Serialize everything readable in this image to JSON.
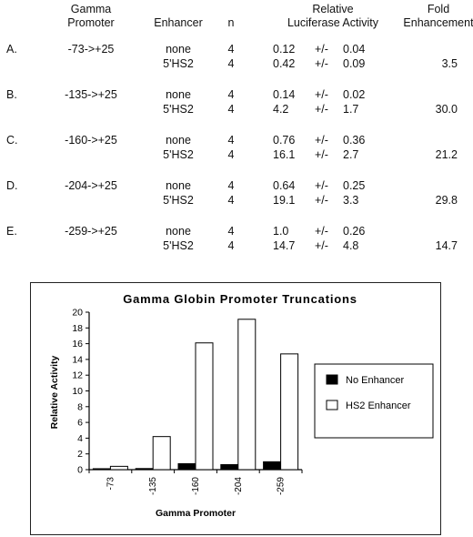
{
  "table": {
    "headers": {
      "promoter": "Gamma\nPromoter",
      "enhancer": "Enhancer",
      "n": "n",
      "activity": "Relative\nLuciferase Activity",
      "fold": "Fold\nEnhancement"
    },
    "rows": [
      {
        "label": "A.",
        "promoter": "-73->+25",
        "lines": [
          {
            "enhancer": "none",
            "n": "4",
            "mean": "0.12",
            "pm": "+/-",
            "sd": "0.04",
            "fold": ""
          },
          {
            "enhancer": "5'HS2",
            "n": "4",
            "mean": "0.42",
            "pm": "+/-",
            "sd": "0.09",
            "fold": "3.5"
          }
        ]
      },
      {
        "label": "B.",
        "promoter": "-135->+25",
        "lines": [
          {
            "enhancer": "none",
            "n": "4",
            "mean": "0.14",
            "pm": "+/-",
            "sd": "0.02",
            "fold": ""
          },
          {
            "enhancer": "5'HS2",
            "n": "4",
            "mean": "4.2",
            "pm": "+/-",
            "sd": "1.7",
            "fold": "30.0"
          }
        ]
      },
      {
        "label": "C.",
        "promoter": "-160->+25",
        "lines": [
          {
            "enhancer": "none",
            "n": "4",
            "mean": "0.76",
            "pm": "+/-",
            "sd": "0.36",
            "fold": ""
          },
          {
            "enhancer": "5'HS2",
            "n": "4",
            "mean": "16.1",
            "pm": "+/-",
            "sd": "2.7",
            "fold": "21.2"
          }
        ]
      },
      {
        "label": "D.",
        "promoter": "-204->+25",
        "lines": [
          {
            "enhancer": "none",
            "n": "4",
            "mean": "0.64",
            "pm": "+/-",
            "sd": "0.25",
            "fold": ""
          },
          {
            "enhancer": "5'HS2",
            "n": "4",
            "mean": "19.1",
            "pm": "+/-",
            "sd": "3.3",
            "fold": "29.8"
          }
        ]
      },
      {
        "label": "E.",
        "promoter": "-259->+25",
        "lines": [
          {
            "enhancer": "none",
            "n": "4",
            "mean": "1.0",
            "pm": "+/-",
            "sd": "0.26",
            "fold": ""
          },
          {
            "enhancer": "5'HS2",
            "n": "4",
            "mean": "14.7",
            "pm": "+/-",
            "sd": "4.8",
            "fold": "14.7"
          }
        ]
      }
    ]
  },
  "chart_data": {
    "type": "bar",
    "title": "Gamma Globin Promoter Truncations",
    "xlabel": "Gamma Promoter",
    "ylabel": "Relative Activity",
    "categories": [
      "-73",
      "-135",
      "-160",
      "-204",
      "-259"
    ],
    "ylim": [
      0,
      20
    ],
    "yticks": [
      0,
      2,
      4,
      6,
      8,
      10,
      12,
      14,
      16,
      18,
      20
    ],
    "grid": false,
    "legend_position": "right",
    "series": [
      {
        "name": "No Enhancer",
        "values": [
          0.12,
          0.14,
          0.76,
          0.64,
          1.0
        ],
        "color": "#000000"
      },
      {
        "name": "HS2 Enhancer",
        "values": [
          0.42,
          4.2,
          16.1,
          19.1,
          14.7
        ],
        "color": "#ffffff"
      }
    ]
  }
}
